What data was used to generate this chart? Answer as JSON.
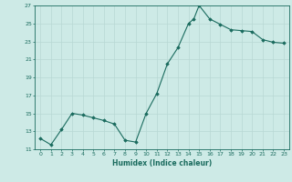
{
  "x_data": [
    0,
    1,
    2,
    3,
    4,
    5,
    6,
    7,
    8,
    9,
    10,
    11,
    12,
    13,
    14,
    14.5,
    15,
    16,
    17,
    18,
    19,
    20,
    21,
    22,
    23
  ],
  "y_data": [
    12.2,
    11.5,
    13.2,
    15.0,
    14.8,
    14.5,
    14.2,
    13.8,
    12.0,
    11.8,
    15.0,
    17.2,
    20.5,
    22.3,
    25.0,
    25.5,
    27.0,
    25.5,
    24.9,
    24.3,
    24.2,
    24.1,
    23.2,
    22.9,
    22.8
  ],
  "line_color": "#1a6b5e",
  "bg_color": "#cdeae6",
  "grid_color": "#b8d8d4",
  "xlabel": "Humidex (Indice chaleur)",
  "ylim": [
    11,
    27
  ],
  "xlim_min": -0.5,
  "xlim_max": 23.5,
  "yticks": [
    11,
    13,
    15,
    17,
    19,
    21,
    23,
    25,
    27
  ],
  "xticks": [
    0,
    1,
    2,
    3,
    4,
    5,
    6,
    7,
    8,
    9,
    10,
    11,
    12,
    13,
    14,
    15,
    16,
    17,
    18,
    19,
    20,
    21,
    22,
    23
  ]
}
